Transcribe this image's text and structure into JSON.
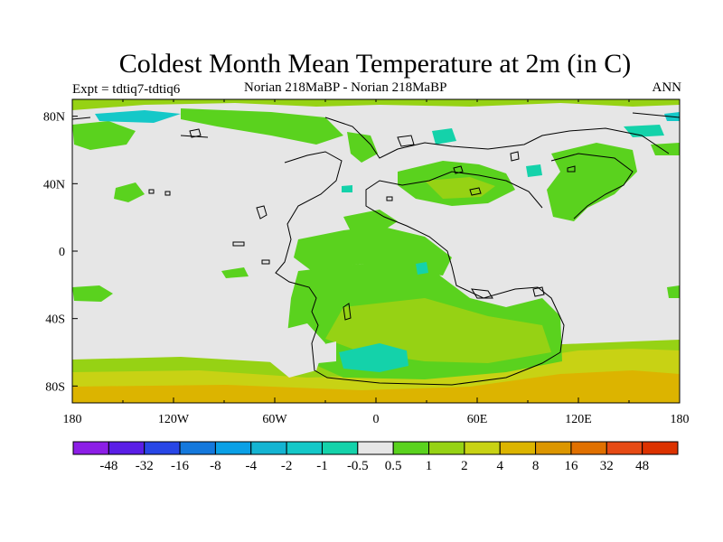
{
  "title": "Coldest Month Mean Temperature at 2m (in C)",
  "subtitle_left": "Expt = tdtiq7-tdtiq6",
  "subtitle_center": "Norian   218MaBP - Norian   218MaBP",
  "subtitle_right": "ANN",
  "map": {
    "projection": "cylindrical equidistant",
    "lon_range": [
      -180,
      180
    ],
    "lat_range": [
      -90,
      90
    ],
    "x_ticks": [
      "180",
      "120W",
      "60W",
      "0",
      "60E",
      "120E",
      "180"
    ],
    "y_ticks": [
      "80N",
      "40N",
      "0",
      "40S",
      "80S"
    ],
    "background_color": "#e6e6e6"
  },
  "colorbar": {
    "labels": [
      "-48",
      "-32",
      "-16",
      "-8",
      "-4",
      "-2",
      "-1",
      "-0.5",
      "0.5",
      "1",
      "2",
      "4",
      "8",
      "16",
      "32",
      "48"
    ],
    "colors": [
      "#8c1ee6",
      "#5a1ee6",
      "#2846e6",
      "#1478dc",
      "#0aa0e6",
      "#14b4d2",
      "#14c8c8",
      "#14d2aa",
      "#e6e6e6",
      "#5ad21e",
      "#96d214",
      "#c8d214",
      "#dcb400",
      "#dc9600",
      "#e07000",
      "#e64a14",
      "#dc3200"
    ]
  }
}
